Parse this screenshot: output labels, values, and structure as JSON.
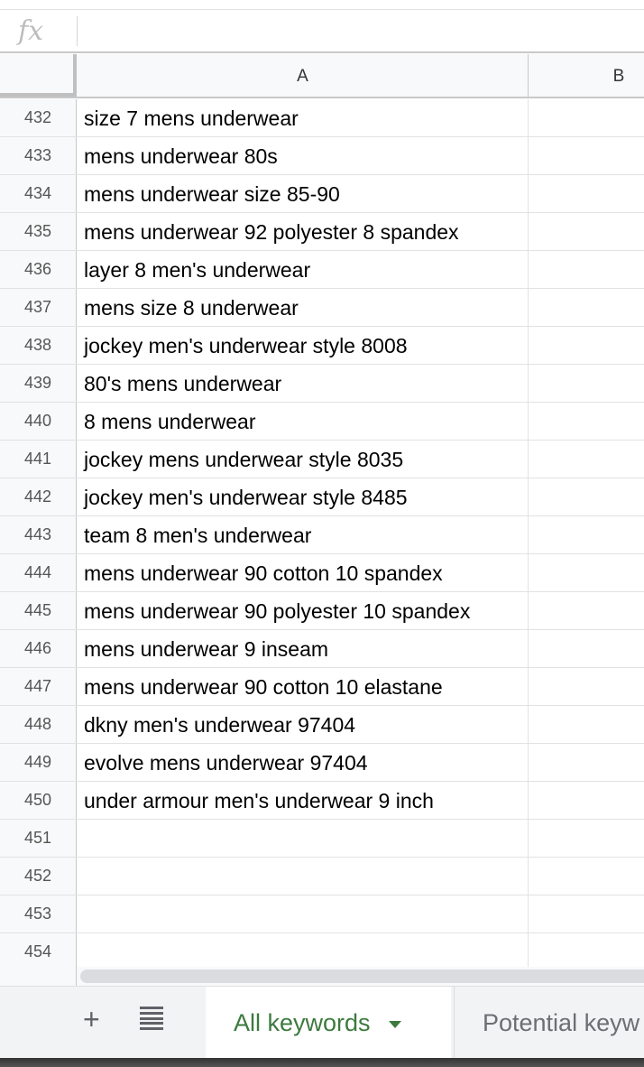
{
  "formula_bar": {
    "icon": "fx",
    "value": ""
  },
  "columns": [
    "A",
    "B"
  ],
  "rows": [
    {
      "num": "432",
      "a": "size 7 mens underwear"
    },
    {
      "num": "433",
      "a": "mens underwear 80s"
    },
    {
      "num": "434",
      "a": "mens underwear size 85-90"
    },
    {
      "num": "435",
      "a": "mens underwear 92 polyester 8 spandex"
    },
    {
      "num": "436",
      "a": "layer 8 men's underwear"
    },
    {
      "num": "437",
      "a": "mens size 8 underwear"
    },
    {
      "num": "438",
      "a": "jockey men's underwear style 8008"
    },
    {
      "num": "439",
      "a": "80's mens underwear"
    },
    {
      "num": "440",
      "a": "8 mens underwear"
    },
    {
      "num": "441",
      "a": "jockey mens underwear style 8035"
    },
    {
      "num": "442",
      "a": "jockey men's underwear style 8485"
    },
    {
      "num": "443",
      "a": "team 8 men's underwear"
    },
    {
      "num": "444",
      "a": "mens underwear 90 cotton 10 spandex"
    },
    {
      "num": "445",
      "a": "mens underwear 90 polyester 10 spandex"
    },
    {
      "num": "446",
      "a": "mens underwear 9 inseam"
    },
    {
      "num": "447",
      "a": "mens underwear 90 cotton 10 elastane"
    },
    {
      "num": "448",
      "a": "dkny men's underwear 97404"
    },
    {
      "num": "449",
      "a": "evolve mens underwear 97404"
    },
    {
      "num": "450",
      "a": "under armour men's underwear 9 inch"
    },
    {
      "num": "451",
      "a": ""
    },
    {
      "num": "452",
      "a": ""
    },
    {
      "num": "453",
      "a": ""
    },
    {
      "num": "454",
      "a": ""
    }
  ],
  "sheet_tabs": {
    "add_icon": "+",
    "active": "All keywords",
    "other": "Potential keyw"
  },
  "colors": {
    "active_tab": "#3c7a3e",
    "inactive_tab": "#6b6f73"
  }
}
